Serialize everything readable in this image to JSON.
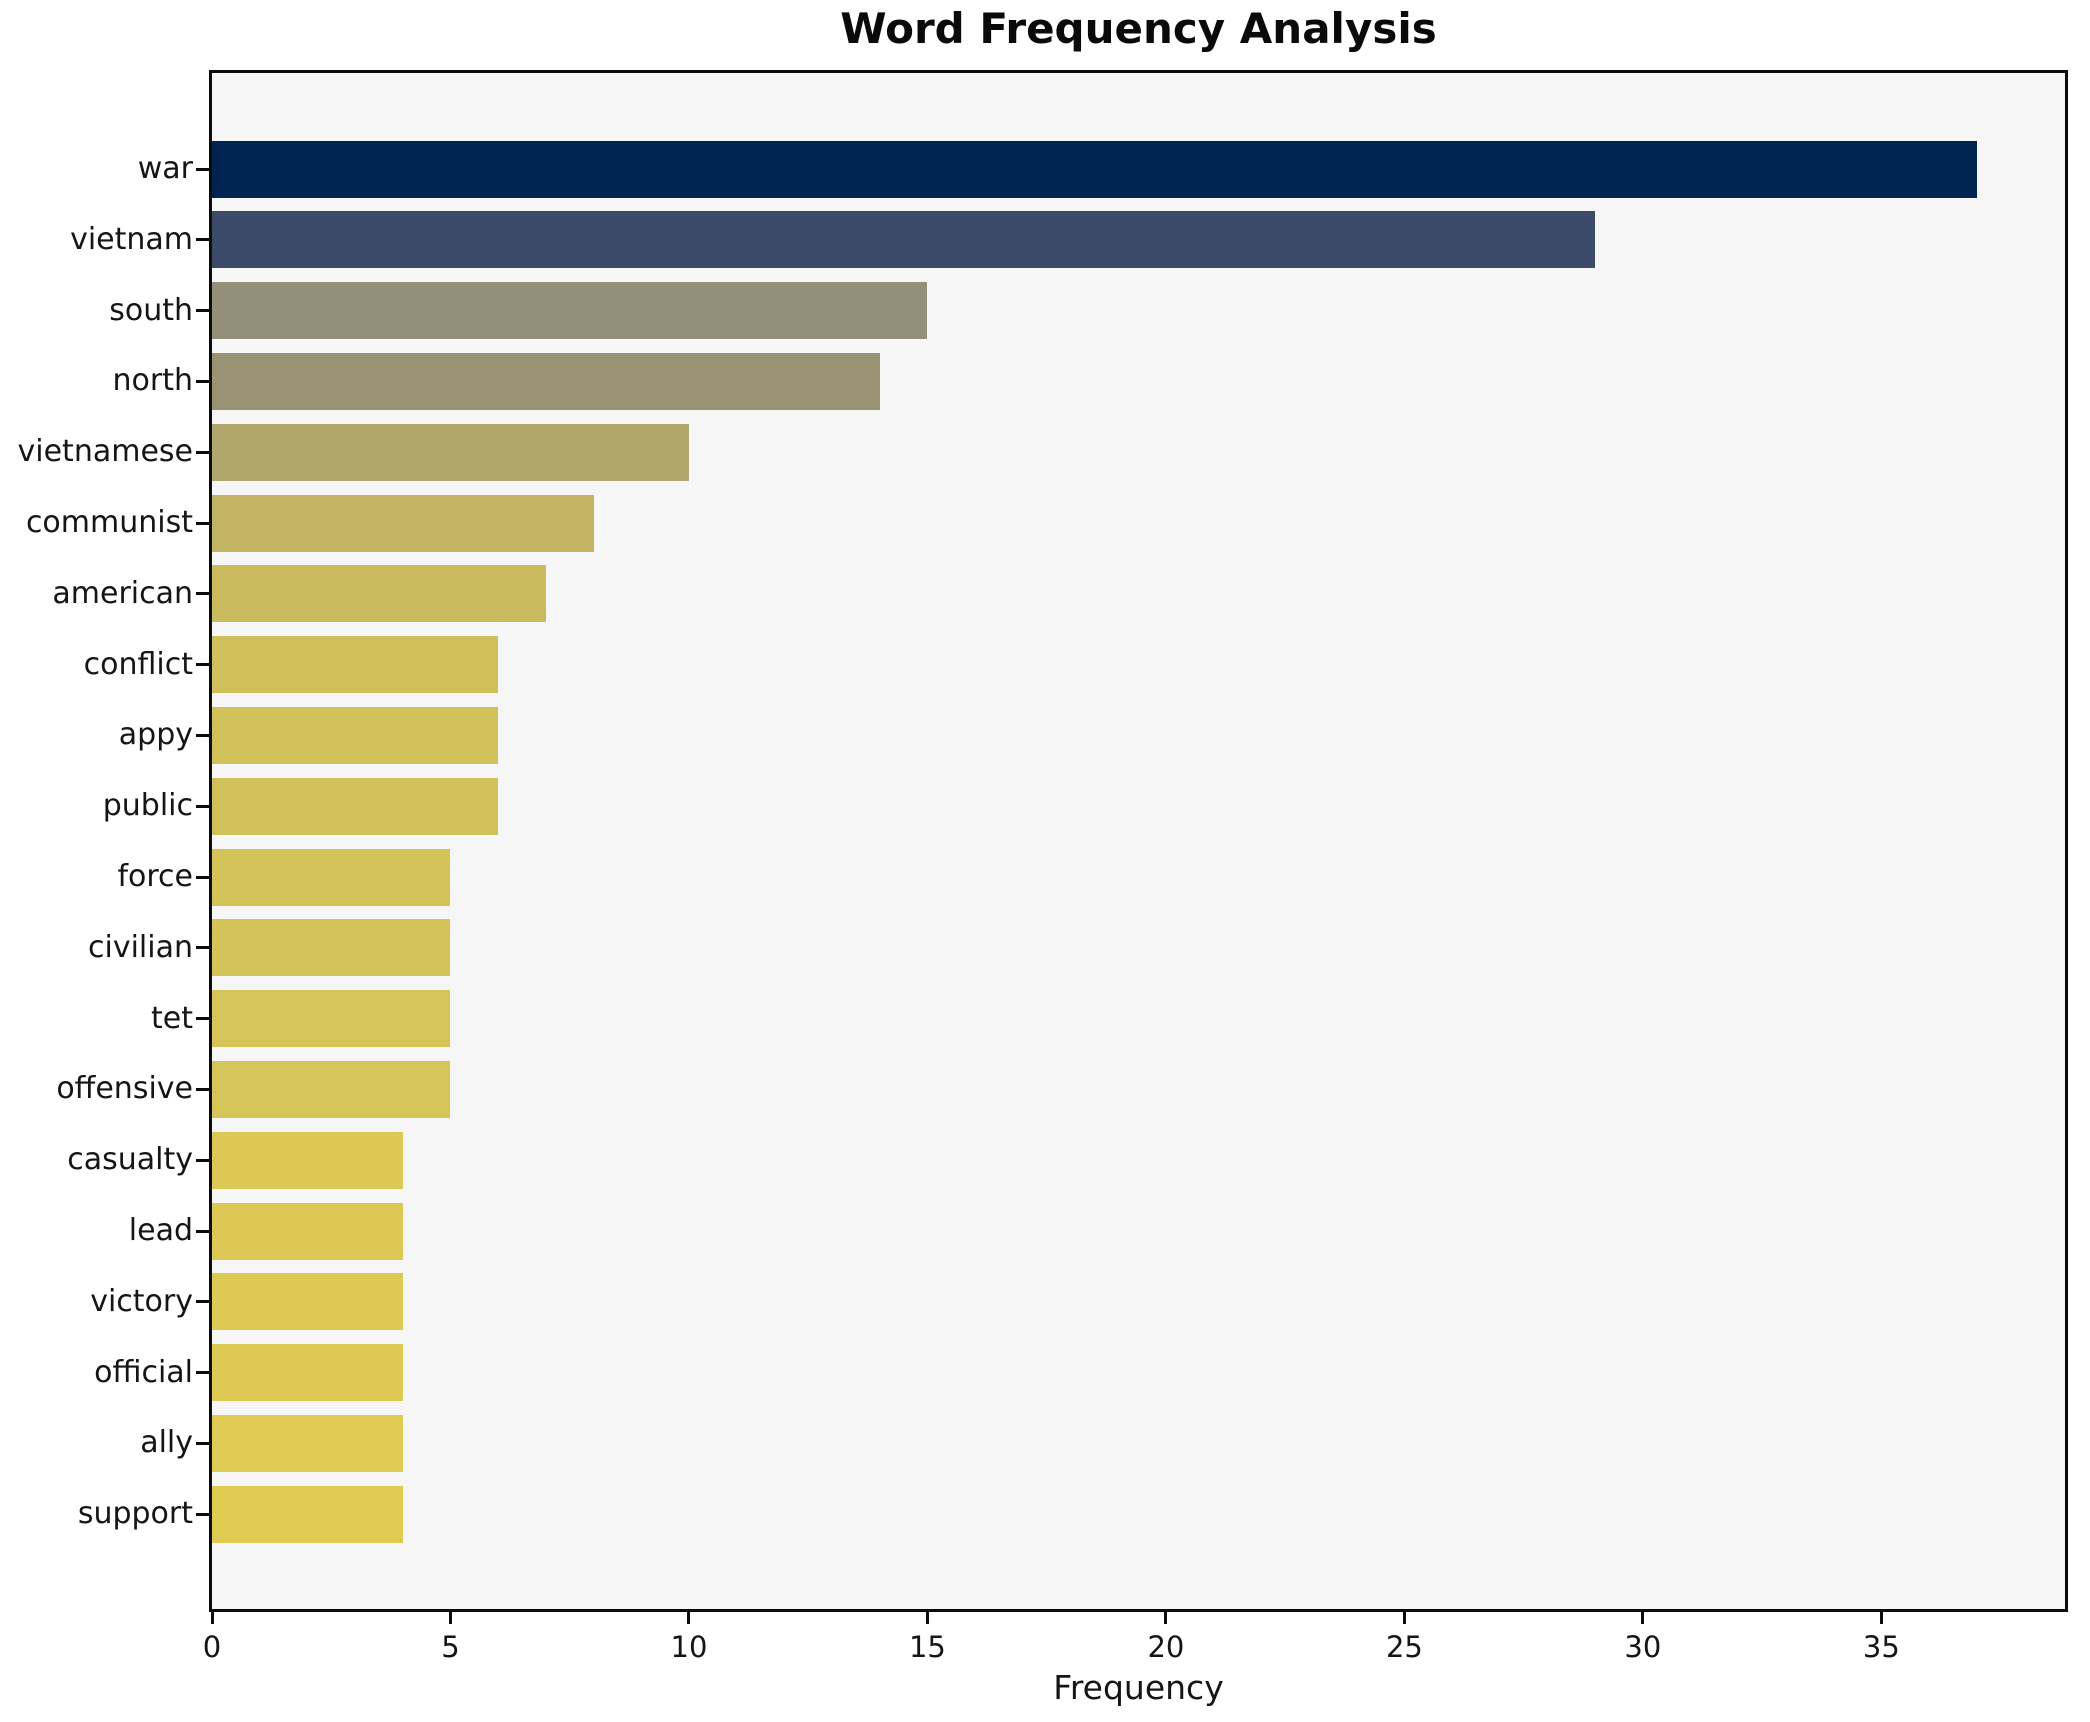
{
  "title": "Word Frequency Analysis",
  "chart_data": {
    "type": "bar",
    "orientation": "horizontal",
    "title": "Word Frequency Analysis",
    "xlabel": "Frequency",
    "ylabel": "",
    "categories": [
      "war",
      "vietnam",
      "south",
      "north",
      "vietnamese",
      "communist",
      "american",
      "conflict",
      "appy",
      "public",
      "force",
      "civilian",
      "tet",
      "offensive",
      "casualty",
      "lead",
      "victory",
      "official",
      "ally",
      "support"
    ],
    "values": [
      37,
      29,
      15,
      14,
      10,
      8,
      7,
      6,
      6,
      6,
      5,
      5,
      5,
      5,
      4,
      4,
      4,
      4,
      4,
      4
    ],
    "bar_colors": [
      "#002452",
      "#3b4a68",
      "#948f78",
      "#999273",
      "#b0a76c",
      "#c2b363",
      "#cabb5f",
      "#d0c05c",
      "#d1c15b",
      "#d1c15b",
      "#d4c359",
      "#d4c359",
      "#d5c458",
      "#d5c458",
      "#dcc854",
      "#dcc854",
      "#ddc953",
      "#ddc953",
      "#dfca53",
      "#e0cb52"
    ],
    "x_ticks": [
      0,
      5,
      10,
      15,
      20,
      25,
      30,
      35
    ],
    "xlim": [
      0,
      38.85
    ],
    "grid": false,
    "legend": false,
    "plot_background": "#f6f6f7",
    "figure_background": "#ffffff",
    "spine_color": "#0c0c0c",
    "title_color": "#0a0a0a",
    "tick_label_color": "#151515"
  }
}
